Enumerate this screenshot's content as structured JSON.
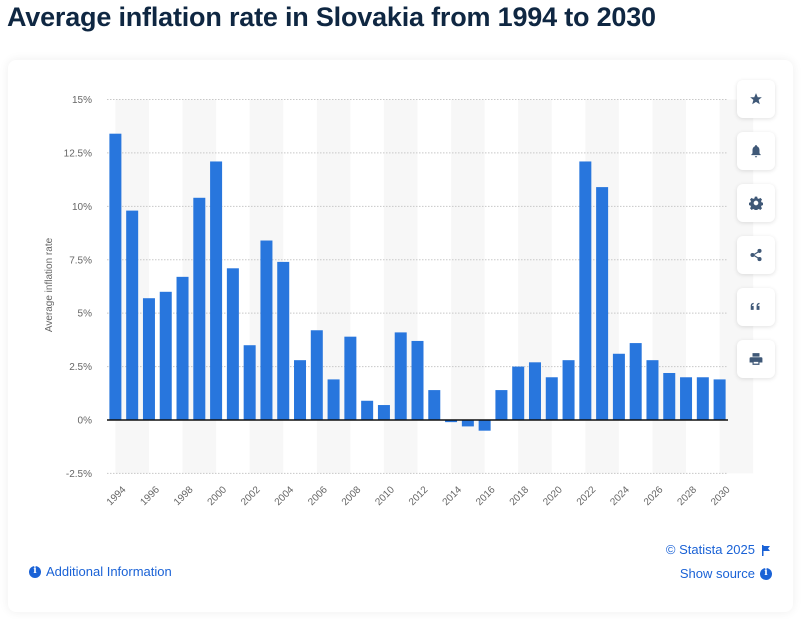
{
  "title": "Average inflation rate in Slovakia from 1994 to 2030",
  "colors": {
    "bar": "#2876dd",
    "title": "#0f2742",
    "link": "#1a62d6",
    "axis_text": "#666666",
    "gridline": "#c8c8c8",
    "band": "#f7f7f7",
    "zero_line": "#111111",
    "icon": "#3f5877"
  },
  "sidebar": {
    "buttons": [
      {
        "name": "favorite",
        "icon": "star-icon"
      },
      {
        "name": "notification",
        "icon": "bell-icon"
      },
      {
        "name": "settings",
        "icon": "gear-icon"
      },
      {
        "name": "share",
        "icon": "share-icon"
      },
      {
        "name": "cite",
        "icon": "quote-icon"
      },
      {
        "name": "print",
        "icon": "printer-icon"
      }
    ]
  },
  "footer": {
    "additional_info": "Additional Information",
    "copyright": "© Statista 2025",
    "show_source": "Show source"
  },
  "chart_data": {
    "type": "bar",
    "title": "Average inflation rate in Slovakia from 1994 to 2030",
    "xlabel": "",
    "ylabel": "Average inflation rate",
    "ylim": [
      -2.5,
      15
    ],
    "yticks": [
      -2.5,
      0,
      2.5,
      5,
      7.5,
      10,
      12.5,
      15
    ],
    "ytick_labels": [
      "-2.5%",
      "0%",
      "2.5%",
      "5%",
      "7.5%",
      "10%",
      "12.5%",
      "15%"
    ],
    "grid": true,
    "legend": "none",
    "categories": [
      "1994",
      "1995",
      "1996",
      "1997",
      "1998",
      "1999",
      "2000",
      "2001",
      "2002",
      "2003",
      "2004",
      "2005",
      "2006",
      "2007",
      "2008",
      "2009",
      "2010",
      "2011",
      "2012",
      "2013",
      "2014",
      "2015",
      "2016",
      "2017",
      "2018",
      "2019",
      "2020",
      "2021",
      "2022",
      "2023",
      "2024",
      "2025",
      "2026",
      "2027",
      "2028",
      "2029",
      "2030"
    ],
    "xtick_labels": [
      "1994",
      "1996",
      "1998",
      "2000",
      "2002",
      "2004",
      "2006",
      "2008",
      "2010",
      "2012",
      "2014",
      "2016",
      "2018",
      "2020",
      "2022",
      "2024",
      "2026",
      "2028",
      "2030"
    ],
    "values": [
      13.4,
      9.8,
      5.7,
      6.0,
      6.7,
      10.4,
      12.1,
      7.1,
      3.5,
      8.4,
      7.4,
      2.8,
      4.2,
      1.9,
      3.9,
      0.9,
      0.7,
      4.1,
      3.7,
      1.4,
      -0.1,
      -0.3,
      -0.5,
      1.4,
      2.5,
      2.7,
      2.0,
      2.8,
      12.1,
      10.9,
      3.1,
      3.6,
      2.8,
      2.2,
      2.0,
      2.0,
      1.9
    ],
    "unit": "%"
  }
}
